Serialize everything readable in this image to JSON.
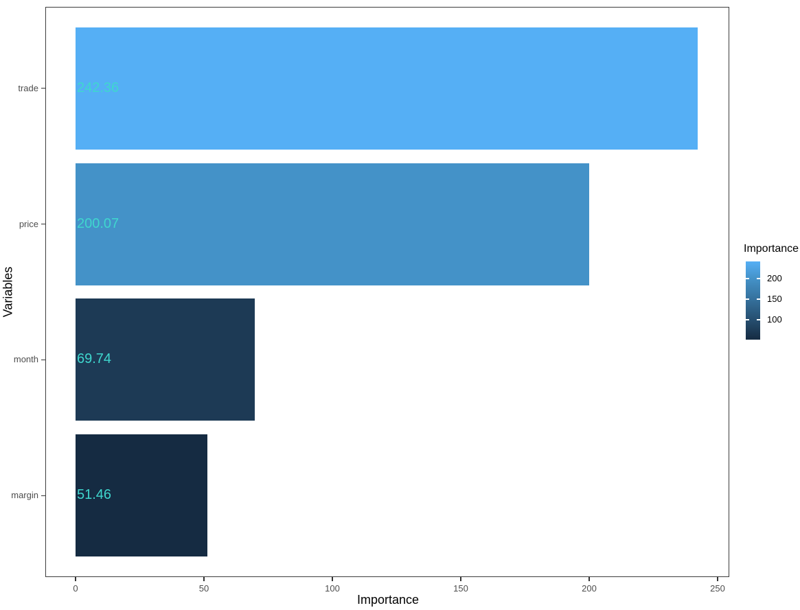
{
  "chart_data": {
    "type": "bar",
    "orientation": "horizontal",
    "xlabel": "Importance",
    "ylabel": "Variables",
    "categories": [
      "trade",
      "price",
      "month",
      "margin"
    ],
    "values": [
      242.36,
      200.07,
      69.74,
      51.46
    ],
    "value_labels": [
      "242.36",
      "200.07",
      "69.74",
      "51.46"
    ],
    "bar_colors": [
      "#55aff5",
      "#4492c8",
      "#1d3a55",
      "#152b42"
    ],
    "value_label_color": "#3fd7ce",
    "x_ticks": [
      0,
      50,
      100,
      150,
      200,
      250
    ],
    "xlim": [
      -12.1,
      254.5
    ],
    "grid": "off",
    "panel_border_color": "#3c3c3c",
    "tick_color": "#333333",
    "axis_text_color": "#4d4d4d",
    "legend": {
      "title": "Importance",
      "position": "right",
      "ticks": [
        200,
        150,
        100
      ],
      "domain": [
        51.46,
        242.36
      ],
      "gradient_stops": [
        {
          "pos": 0,
          "color": "#55aff5"
        },
        {
          "pos": 22,
          "color": "#4492c8"
        },
        {
          "pos": 48,
          "color": "#35719d"
        },
        {
          "pos": 75,
          "color": "#264e6f"
        },
        {
          "pos": 100,
          "color": "#152b42"
        }
      ]
    }
  }
}
